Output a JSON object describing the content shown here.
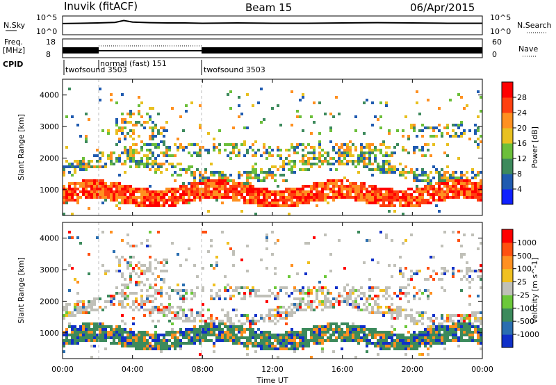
{
  "header": {
    "station": "Inuvik (fitACF)",
    "beam": "Beam 15",
    "date": "06/Apr/2015"
  },
  "chart_data": [
    {
      "type": "line",
      "name": "sky-noise-panel",
      "left_label": "N.Sky",
      "right_label": "N.Search",
      "left_ticks": [
        "10^5",
        "10^0"
      ],
      "right_ticks": [
        "10^5",
        "10^0"
      ],
      "x": [
        0,
        1,
        2,
        3,
        3.5,
        4,
        5,
        6,
        7,
        8,
        10,
        12,
        14,
        16,
        18,
        20,
        22,
        24
      ],
      "y_log": [
        3.2,
        3.3,
        3.4,
        3.6,
        4.2,
        3.7,
        3.5,
        3.4,
        3.4,
        3.3,
        3.4,
        3.3,
        3.3,
        3.4,
        3.5,
        3.4,
        3.3,
        3.3
      ]
    },
    {
      "type": "line",
      "name": "frequency-panel",
      "left_label": "Freq.",
      "left_unit": "[MHz]",
      "right_label": "Nave",
      "left_ticks": [
        "18",
        "8"
      ],
      "right_ticks": [
        "60",
        "0"
      ]
    },
    {
      "type": "table",
      "name": "cpid-panel",
      "label": "CPID",
      "segments": [
        {
          "start": 0,
          "label": "twofsound 3503"
        },
        {
          "start": 2.0,
          "label": "normal (fast) 151"
        },
        {
          "start": 8.0,
          "label": "twofsound 3503"
        }
      ]
    },
    {
      "type": "heatmap",
      "name": "power-panel",
      "ylabel": "Slant Range [km]",
      "ylim": [
        180,
        4500
      ],
      "yticks": [
        "1000",
        "2000",
        "3000",
        "4000"
      ],
      "colorbar_label": "Power [dB]",
      "colorbar_ticks": [
        "4",
        "8",
        "12",
        "16",
        "20",
        "24",
        "28"
      ],
      "colors": [
        "#1020ff",
        "#205bb0",
        "#3d8a5c",
        "#6cbf3a",
        "#e8c020",
        "#ff9020",
        "#ff4010",
        "#ff0000"
      ]
    },
    {
      "type": "heatmap",
      "name": "velocity-panel",
      "ylabel": "Slant Range [km]",
      "ylim": [
        180,
        4500
      ],
      "yticks": [
        "1000",
        "2000",
        "3000",
        "4000"
      ],
      "colorbar_label": "Velocity [m s^-1]",
      "colorbar_ticks": [
        "1000",
        "500",
        "100",
        "25",
        "-25",
        "-100",
        "-500",
        "-1000"
      ],
      "colors": [
        "#1030c8",
        "#2a6eb0",
        "#3c8a5c",
        "#6cc83a",
        "#c0c0b8",
        "#f0c020",
        "#ff9020",
        "#ff5010",
        "#ff0000"
      ]
    }
  ],
  "xaxis": {
    "label": "Time UT",
    "ticks": [
      "00:00",
      "04:00",
      "08:00",
      "12:00",
      "16:00",
      "20:00",
      "00:00"
    ]
  }
}
